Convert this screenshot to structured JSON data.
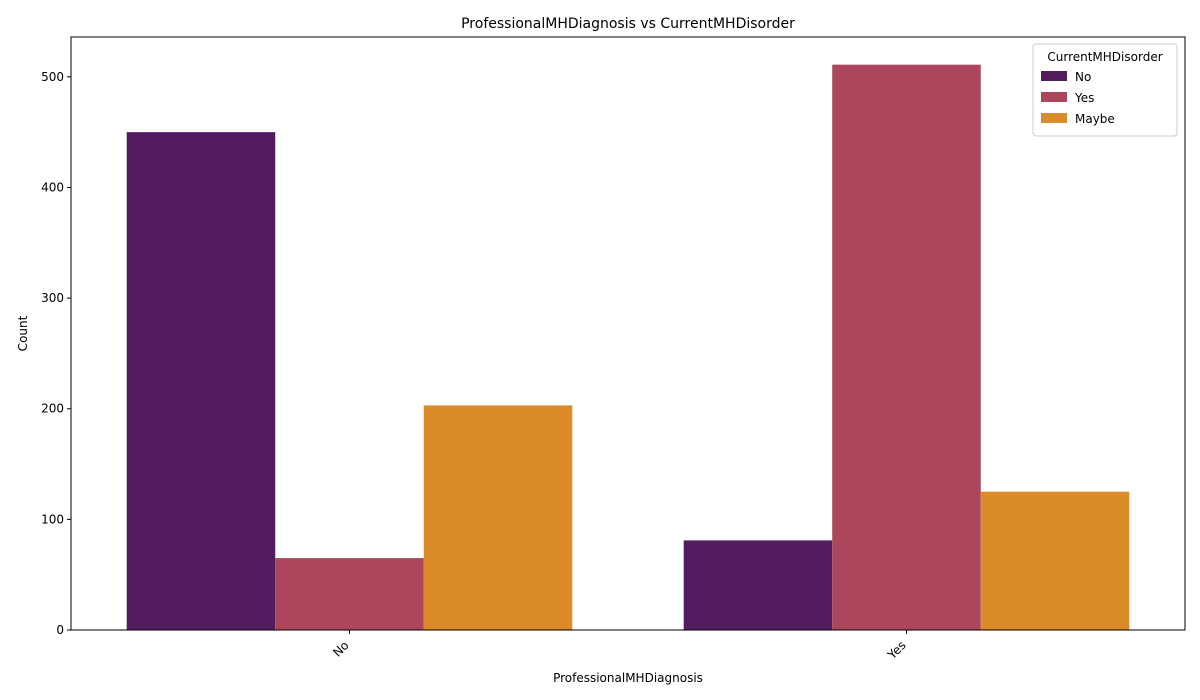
{
  "chart_data": {
    "type": "bar",
    "title": "ProfessionalMHDiagnosis vs CurrentMHDisorder",
    "xlabel": "ProfessionalMHDiagnosis",
    "ylabel": "Count",
    "categories": [
      "No",
      "Yes"
    ],
    "ylim": [
      0,
      536
    ],
    "yticks": [
      0,
      100,
      200,
      300,
      400,
      500
    ],
    "legend": {
      "title": "CurrentMHDisorder",
      "placement": "top-right"
    },
    "grid": false,
    "series": [
      {
        "name": "No",
        "color": "#521c5e",
        "values": [
          450,
          81
        ]
      },
      {
        "name": "Yes",
        "color": "#ab465c",
        "values": [
          65,
          511
        ]
      },
      {
        "name": "Maybe",
        "color": "#dc8b29",
        "values": [
          203,
          125
        ]
      }
    ]
  }
}
